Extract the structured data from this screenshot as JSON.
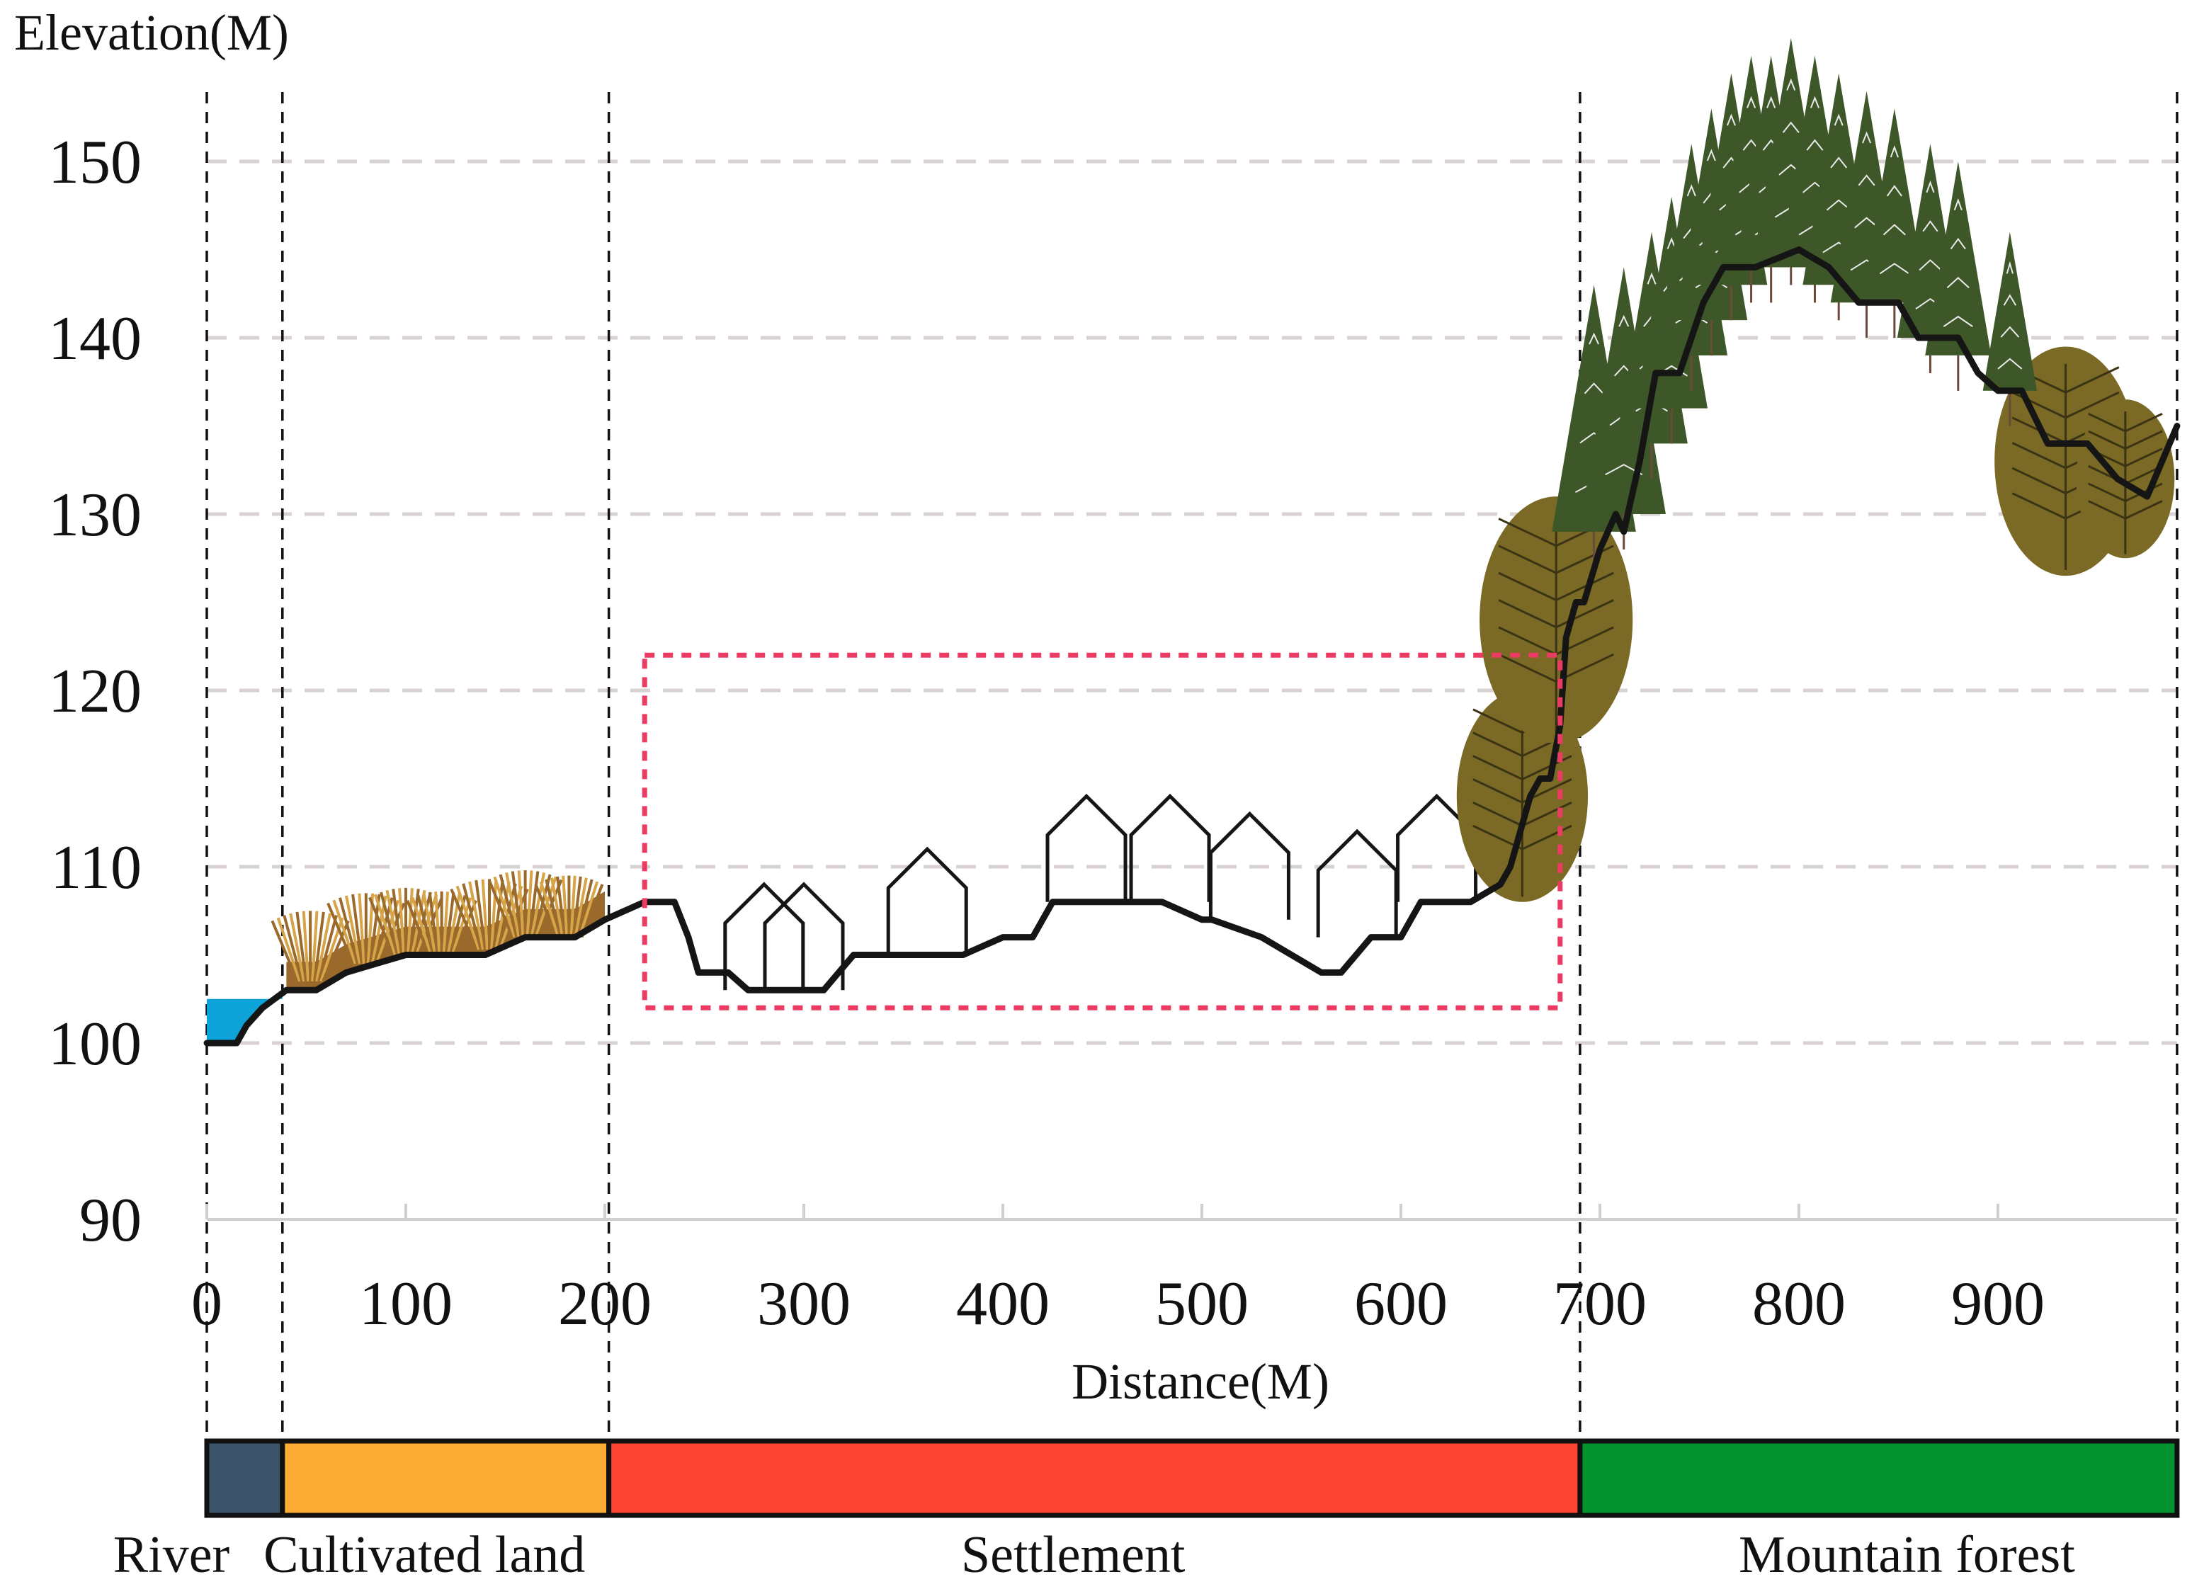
{
  "chart_data": {
    "type": "area",
    "ylabel": "Elevation(M)",
    "xlabel": "Distance(M)",
    "xlim": [
      0,
      990
    ],
    "ylim": [
      90,
      155
    ],
    "x_ticks": [
      0,
      100,
      200,
      300,
      400,
      500,
      600,
      700,
      800,
      900
    ],
    "y_ticks": [
      90,
      100,
      110,
      120,
      130,
      140,
      150
    ],
    "grid": "horizontal-dashed",
    "profile": {
      "name": "terrain",
      "x": [
        0,
        15,
        20,
        28,
        40,
        55,
        70,
        85,
        100,
        120,
        140,
        150,
        160,
        185,
        200,
        220,
        235,
        242,
        247,
        262,
        272,
        295,
        310,
        325,
        340,
        355,
        380,
        400,
        415,
        425,
        445,
        460,
        470,
        480,
        500,
        505,
        530,
        545,
        560,
        570,
        585,
        600,
        610,
        635,
        650,
        655,
        660,
        665,
        670,
        675,
        680,
        683,
        688,
        692,
        700,
        708,
        712,
        720,
        728,
        740,
        752,
        762,
        778,
        800,
        815,
        830,
        850,
        860,
        880,
        890,
        900,
        912,
        925,
        945,
        960,
        975,
        990
      ],
      "y": [
        100,
        100,
        101,
        102,
        103,
        103,
        104,
        104.5,
        105,
        105,
        105,
        105.5,
        106,
        106,
        107,
        108,
        108,
        106,
        104,
        104,
        103,
        103,
        103,
        105,
        105,
        105,
        105,
        106,
        106,
        108,
        108,
        108,
        108,
        108,
        107,
        107,
        106,
        105,
        104,
        104,
        106,
        106,
        108,
        108,
        109,
        110,
        112,
        114,
        115,
        115,
        118,
        123,
        125,
        125,
        128,
        130,
        129,
        133,
        138,
        138,
        142,
        144,
        144,
        145,
        144,
        142,
        142,
        140,
        140,
        138,
        137,
        137,
        134,
        134,
        132,
        131,
        135
      ]
    },
    "river_water": {
      "x": [
        0,
        15,
        20,
        28,
        38
      ],
      "y": [
        102.5,
        102.5,
        102.5,
        102.5,
        102.5
      ]
    },
    "settlement_box": {
      "x": [
        220,
        680
      ],
      "y": [
        102,
        122
      ]
    },
    "houses": [
      {
        "x": 280,
        "y": 103
      },
      {
        "x": 300,
        "y": 103
      },
      {
        "x": 362,
        "y": 105
      },
      {
        "x": 442,
        "y": 108
      },
      {
        "x": 484,
        "y": 108
      },
      {
        "x": 524,
        "y": 107
      },
      {
        "x": 578,
        "y": 106
      },
      {
        "x": 618,
        "y": 108
      }
    ],
    "crops": [
      {
        "x": 52,
        "y": 103.5,
        "h": 4
      },
      {
        "x": 80,
        "y": 104.5,
        "h": 4
      },
      {
        "x": 100,
        "y": 105,
        "h": 3.8
      },
      {
        "x": 118,
        "y": 105,
        "h": 3.6
      },
      {
        "x": 142,
        "y": 105.3,
        "h": 4
      },
      {
        "x": 160,
        "y": 106,
        "h": 3.8
      },
      {
        "x": 182,
        "y": 106,
        "h": 3.5
      }
    ],
    "deciduous_trees": [
      {
        "x": 661,
        "y": 114,
        "h": 12
      },
      {
        "x": 678,
        "y": 124,
        "h": 14
      },
      {
        "x": 934,
        "y": 133,
        "h": 13
      },
      {
        "x": 964,
        "y": 132,
        "h": 9
      }
    ],
    "conifers": [
      {
        "x": 697,
        "y": 129,
        "h": 14
      },
      {
        "x": 712,
        "y": 130,
        "h": 14
      },
      {
        "x": 726,
        "y": 134,
        "h": 12
      },
      {
        "x": 736,
        "y": 136,
        "h": 12
      },
      {
        "x": 746,
        "y": 139,
        "h": 12
      },
      {
        "x": 756,
        "y": 141,
        "h": 12
      },
      {
        "x": 766,
        "y": 143,
        "h": 12
      },
      {
        "x": 776,
        "y": 144,
        "h": 12
      },
      {
        "x": 786,
        "y": 144,
        "h": 12
      },
      {
        "x": 796,
        "y": 145,
        "h": 12
      },
      {
        "x": 808,
        "y": 144,
        "h": 12
      },
      {
        "x": 820,
        "y": 143,
        "h": 12
      },
      {
        "x": 834,
        "y": 142,
        "h": 12
      },
      {
        "x": 848,
        "y": 142,
        "h": 11
      },
      {
        "x": 866,
        "y": 140,
        "h": 11
      },
      {
        "x": 880,
        "y": 139,
        "h": 11
      },
      {
        "x": 906,
        "y": 137,
        "h": 9
      }
    ],
    "zones": [
      {
        "label": "River",
        "x0": 0,
        "x1": 38,
        "color": "#3c546a"
      },
      {
        "label": "Cultivated land",
        "x0": 38,
        "x1": 202,
        "color": "#fcab34"
      },
      {
        "label": "Settlement",
        "x0": 202,
        "x1": 690,
        "color": "#fd4331"
      },
      {
        "label": "Mountain forest",
        "x0": 690,
        "x1": 990,
        "color": "#02922f"
      }
    ],
    "colors": {
      "profile": "#151515",
      "water": "#0ea3d8",
      "field": "#9a6a2c",
      "crop": "#d7a448",
      "settlement_box": "#ec3b62",
      "conifer": "#3d5728",
      "deciduous": "#7a6a26",
      "grid": "#d9d2d2"
    }
  }
}
